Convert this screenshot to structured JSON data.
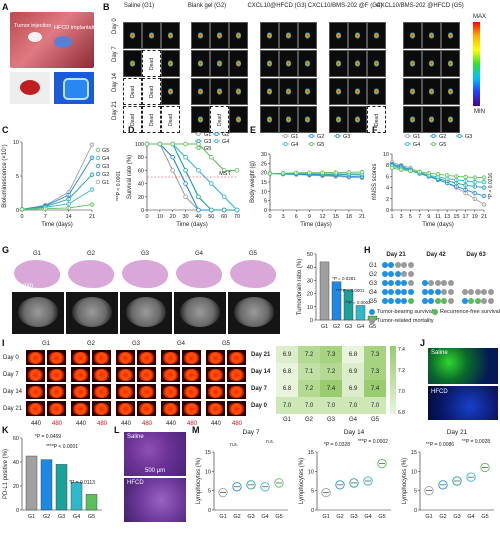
{
  "panel_letters": [
    "A",
    "B",
    "C",
    "D",
    "E",
    "F",
    "G",
    "H",
    "I",
    "J",
    "K",
    "L",
    "M"
  ],
  "panel_a": {
    "label_tumor": "Tumor injection",
    "label_hfcd": "HFCD implantation"
  },
  "panel_b": {
    "groups": [
      "Saline (G1)",
      "Blank gel (G2)",
      "CXCL10@HFCD (G3)",
      "CXCL10/BMS-202 @F (G4)",
      "CXCL10/BMS-202 @HFCD (G5)"
    ],
    "days": [
      "Day 0",
      "Day 7",
      "Day 14",
      "Day 21"
    ],
    "dead_label": "Dead",
    "scale_max": "MAX",
    "scale_min": "MIN"
  },
  "panel_c": {
    "ylabel": "Bioluminescence (×10⁷)",
    "xlabel": "Time (days)",
    "pvalue": "***P < 0.0001",
    "chart_data": {
      "type": "line",
      "x": [
        0,
        7,
        14,
        21
      ],
      "series": [
        {
          "name": "G1",
          "values": [
            0.1,
            0.7,
            2.6,
            9.6
          ]
        },
        {
          "name": "G2",
          "values": [
            0.1,
            0.6,
            2.2,
            7.7
          ]
        },
        {
          "name": "G3",
          "values": [
            0.1,
            0.5,
            1.6,
            5.2
          ]
        },
        {
          "name": "G4",
          "values": [
            0.1,
            0.4,
            0.9,
            3.0
          ]
        },
        {
          "name": "G5",
          "values": [
            0.1,
            0.2,
            0.3,
            0.8
          ]
        }
      ],
      "ylim": [
        0,
        10
      ],
      "yticks": [
        0,
        5,
        10
      ],
      "xticks": [
        0,
        7,
        14,
        21
      ]
    }
  },
  "panel_d": {
    "ylabel": "Survival rate (%)",
    "xlabel": "Time (days)",
    "mst_label": "MST",
    "chart_data": {
      "type": "line",
      "x": [
        0,
        10,
        20,
        30,
        40,
        50,
        60,
        70
      ],
      "series": [
        {
          "name": "G1",
          "values": [
            100,
            100,
            60,
            20,
            0,
            0,
            0,
            0
          ]
        },
        {
          "name": "G2",
          "values": [
            100,
            100,
            80,
            40,
            0,
            0,
            0,
            0
          ]
        },
        {
          "name": "G3",
          "values": [
            100,
            100,
            100,
            60,
            20,
            0,
            0,
            0
          ]
        },
        {
          "name": "G4",
          "values": [
            100,
            100,
            100,
            80,
            60,
            40,
            20,
            0
          ]
        },
        {
          "name": "G5",
          "values": [
            100,
            100,
            100,
            100,
            100,
            80,
            60,
            60
          ]
        }
      ],
      "ylim": [
        0,
        100
      ],
      "yticks": [
        0,
        20,
        40,
        60,
        80,
        100
      ],
      "xticks": [
        0,
        10,
        20,
        30,
        40,
        50,
        60,
        70
      ]
    }
  },
  "panel_e": {
    "ylabel": "Body weight (g)",
    "xlabel": "Time (days)",
    "chart_data": {
      "type": "line",
      "x": [
        0,
        3,
        6,
        9,
        12,
        15,
        18,
        21
      ],
      "series": [
        {
          "name": "G1",
          "values": [
            19.5,
            19.2,
            19.0,
            18.6,
            18.3,
            18.0,
            17.5,
            17.2
          ]
        },
        {
          "name": "G2",
          "values": [
            19.5,
            19.3,
            19.2,
            18.9,
            18.7,
            18.5,
            18.0,
            17.8
          ]
        },
        {
          "name": "G3",
          "values": [
            19.6,
            19.5,
            19.4,
            19.2,
            19.1,
            19.0,
            18.9,
            18.7
          ]
        },
        {
          "name": "G4",
          "values": [
            19.5,
            19.6,
            19.6,
            19.5,
            19.4,
            19.4,
            19.3,
            19.3
          ]
        },
        {
          "name": "G5",
          "values": [
            19.5,
            19.7,
            19.9,
            20.0,
            20.0,
            20.1,
            20.2,
            20.3
          ]
        }
      ],
      "ylim": [
        0,
        30
      ],
      "yticks": [
        0,
        5,
        10,
        15,
        20,
        25,
        30
      ],
      "xticks": [
        0,
        3,
        6,
        9,
        12,
        15,
        18,
        21
      ]
    }
  },
  "panel_f": {
    "ylabel": "mNSS scores",
    "xlabel": "Time (days)",
    "pvalue": "*P = 0.0216",
    "chart_data": {
      "type": "line",
      "x": [
        1,
        3,
        5,
        7,
        9,
        11,
        13,
        15,
        17,
        19,
        21
      ],
      "series": [
        {
          "name": "G1",
          "values": [
            8.5,
            8.0,
            7.5,
            6.8,
            6.2,
            5.5,
            4.8,
            4.0,
            3.0,
            2.0,
            1.0
          ]
        },
        {
          "name": "G2",
          "values": [
            8.2,
            7.8,
            7.2,
            6.6,
            6.0,
            5.4,
            4.8,
            4.2,
            3.6,
            3.0,
            2.5
          ]
        },
        {
          "name": "G3",
          "values": [
            8.0,
            7.6,
            7.0,
            6.5,
            6.0,
            5.6,
            5.2,
            4.8,
            4.4,
            4.2,
            4.0
          ]
        },
        {
          "name": "G4",
          "values": [
            7.8,
            7.4,
            7.0,
            6.6,
            6.2,
            5.9,
            5.6,
            5.4,
            5.2,
            5.0,
            5.0
          ]
        },
        {
          "name": "G5",
          "values": [
            7.5,
            7.2,
            7.0,
            6.8,
            6.6,
            6.4,
            6.2,
            6.0,
            5.9,
            5.8,
            5.8
          ]
        }
      ],
      "ylim": [
        0,
        10
      ],
      "yticks": [
        0,
        2,
        4,
        6,
        8,
        10
      ]
    }
  },
  "panel_g": {
    "groups": [
      "G1",
      "G2",
      "G3",
      "G4",
      "G5"
    ],
    "scale_label": "2 mm",
    "ylabel": "Tumor/brain ratio (%)",
    "p1": "*P = 0.0281",
    "p2": "****P < 0.0001",
    "p3": "**P = 0.0002",
    "chart_data": {
      "type": "bar",
      "categories": [
        "G1",
        "G2",
        "G3",
        "G4",
        "G5"
      ],
      "values": [
        44,
        29,
        23,
        11,
        3
      ],
      "ylim": [
        0,
        50
      ],
      "yticks": [
        0,
        10,
        20,
        30,
        40,
        50
      ]
    }
  },
  "panel_h": {
    "days": [
      "Day 21",
      "Day 42",
      "Day 63"
    ],
    "groups": [
      "G1",
      "G2",
      "G3",
      "G4",
      "G5"
    ],
    "legend": [
      "Tumor-bearing survival",
      "Recurrence-free survival",
      "Tumor-related mortality"
    ],
    "colors": {
      "tumor": "#1e90e8",
      "free": "#5ab95a",
      "dead": "#9a9a9a"
    },
    "rows": [
      [
        [
          "T",
          "T",
          "D",
          "D",
          "D"
        ],
        [],
        []
      ],
      [
        [
          "T",
          "T",
          "T",
          "D",
          "D"
        ],
        [],
        []
      ],
      [
        [
          "T",
          "T",
          "T",
          "T",
          "D"
        ],
        [
          "T",
          "D",
          "D",
          "D",
          "D"
        ],
        []
      ],
      [
        [
          "T",
          "T",
          "T",
          "T",
          "T"
        ],
        [
          "T",
          "T",
          "T",
          "D",
          "D"
        ],
        [
          "D",
          "D",
          "D",
          "D",
          "D"
        ]
      ],
      [
        [
          "T",
          "T",
          "T",
          "T",
          "F"
        ],
        [
          "T",
          "T",
          "F",
          "F",
          "D"
        ],
        [
          "T",
          "F",
          "F",
          "D",
          "D"
        ]
      ]
    ]
  },
  "panel_i": {
    "groups": [
      "G1",
      "G2",
      "G3",
      "G4",
      "G5"
    ],
    "days": [
      "Day 0",
      "Day 7",
      "Day 14",
      "Day 21"
    ],
    "wavelengths": [
      "440",
      "480"
    ],
    "heatmap_days": [
      "Day 21",
      "Day 14",
      "Day 7",
      "Day 0"
    ],
    "heatmap_groups": [
      "G1",
      "G2",
      "G3",
      "G4",
      "G5"
    ],
    "heatmap_values": [
      [
        "6.9",
        "7.2",
        "7.3",
        "6.8",
        "7.3"
      ],
      [
        "6.8",
        "7.1",
        "7.2",
        "6.9",
        "7.3"
      ],
      [
        "6.8",
        "7.2",
        "7.4",
        "6.9",
        "7.4"
      ],
      [
        "7.0",
        "7.0",
        "7.0",
        "7.0",
        "7.0"
      ]
    ],
    "scale_ticks": [
      "7.4",
      "7.2",
      "7.0",
      "6.8"
    ]
  },
  "panel_j": {
    "top_label": "Saline",
    "bottom_label": "HFCD"
  },
  "panel_k": {
    "ylabel": "PD-L1 positive (%)",
    "p1": "*P = 0.0459",
    "p2": "****P < 0.0001",
    "p3": "*P = 0.0113",
    "chart_data": {
      "type": "bar",
      "categories": [
        "G1",
        "G2",
        "G3",
        "G4",
        "G5"
      ],
      "values": [
        45,
        42,
        38,
        23,
        13
      ],
      "ylim": [
        0,
        60
      ],
      "yticks": [
        0,
        20,
        40,
        60
      ]
    }
  },
  "panel_l": {
    "top_label": "Saline",
    "bottom_label": "HFCD",
    "scale_label": "500 μm"
  },
  "panel_m": {
    "titles": [
      "Day 7",
      "Day 14",
      "Day 21"
    ],
    "ylabel": "Lymphocytes (%)",
    "groups": [
      "G1",
      "G2",
      "G3",
      "G4",
      "G5"
    ],
    "day7": {
      "p1": "n.s.",
      "p2": "n.s."
    },
    "day14": {
      "p1": "*P = 0.0328",
      "p2": "***P = 0.0002"
    },
    "day21": {
      "p1": "**P = 0.0086",
      "p2": "**P = 0.0028"
    },
    "chart_data": [
      {
        "type": "scatter",
        "categories": [
          "G1",
          "G2",
          "G3",
          "G4",
          "G5"
        ],
        "values": [
          4.5,
          6.0,
          6.5,
          6.0,
          7.0
        ],
        "ylim": [
          0,
          15
        ],
        "yticks": [
          0,
          5,
          10,
          15
        ]
      },
      {
        "type": "scatter",
        "categories": [
          "G1",
          "G2",
          "G3",
          "G4",
          "G5"
        ],
        "values": [
          4.5,
          6.5,
          7.0,
          7.5,
          12.0
        ],
        "ylim": [
          0,
          15
        ],
        "yticks": [
          0,
          5,
          10,
          15
        ]
      },
      {
        "type": "scatter",
        "categories": [
          "G1",
          "G2",
          "G3",
          "G4",
          "G5"
        ],
        "values": [
          5.0,
          6.5,
          7.5,
          8.5,
          11.0
        ],
        "ylim": [
          0,
          15
        ],
        "yticks": [
          0,
          5,
          10,
          15
        ]
      }
    ]
  },
  "series_colors": [
    "#a0a0a0",
    "#1e88e5",
    "#1aa19a",
    "#2fb8c8",
    "#5ac05a"
  ]
}
